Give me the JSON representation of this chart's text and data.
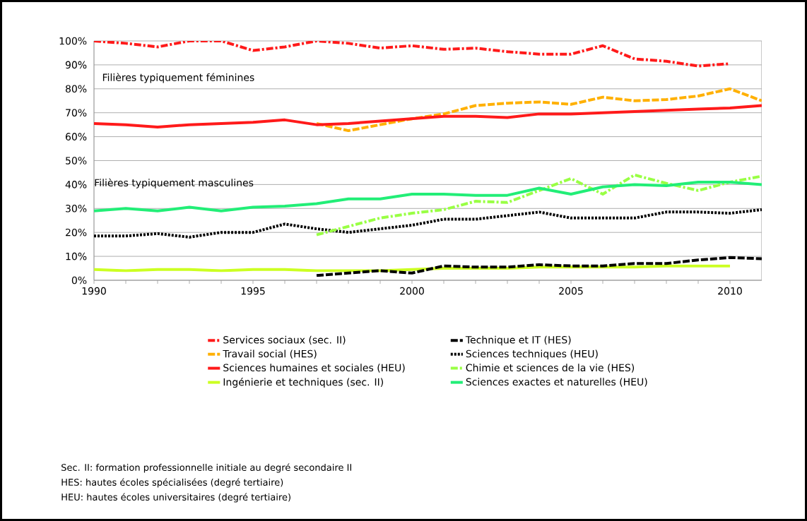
{
  "chart_data": {
    "type": "line",
    "xlim": [
      1990,
      2011
    ],
    "xticks": [
      1990,
      1995,
      2000,
      2005,
      2010
    ],
    "ylim": [
      0,
      100
    ],
    "yticks": [
      {
        "value": 0,
        "label": "0%"
      },
      {
        "value": 10,
        "label": "10%"
      },
      {
        "value": 20,
        "label": "20%"
      },
      {
        "value": 30,
        "label": "30%"
      },
      {
        "value": 40,
        "label": "40%"
      },
      {
        "value": 50,
        "label": "50%"
      },
      {
        "value": 60,
        "label": "60%"
      },
      {
        "value": 70,
        "label": "70%"
      },
      {
        "value": 80,
        "label": "80%"
      },
      {
        "value": 90,
        "label": "90%"
      },
      {
        "value": 100,
        "label": "100%"
      }
    ],
    "grid": "y",
    "legend": "bottom",
    "series": [
      {
        "name": "Services sociaux (sec. II)",
        "color": "#ff1a1a",
        "line_style": "dashdot",
        "x": [
          1990,
          1991,
          1992,
          1993,
          1994,
          1995,
          1996,
          1997,
          1998,
          1999,
          2000,
          2001,
          2002,
          2003,
          2004,
          2005,
          2006,
          2007,
          2008,
          2009,
          2010
        ],
        "values": [
          100,
          99,
          97.5,
          100,
          100,
          96,
          97.5,
          100,
          99,
          97,
          98,
          96.5,
          97,
          95.5,
          94.5,
          94.5,
          98,
          92.5,
          91.5,
          89.5,
          90.5
        ]
      },
      {
        "name": "Travail social (HES)",
        "color": "#ffb000",
        "line_style": "dashed",
        "x": [
          1997,
          1998,
          1999,
          2000,
          2001,
          2002,
          2003,
          2004,
          2005,
          2006,
          2007,
          2008,
          2009,
          2010,
          2011
        ],
        "values": [
          65.5,
          62.5,
          65,
          67.5,
          69.5,
          73,
          74,
          74.5,
          73.5,
          76.5,
          75,
          75.5,
          77,
          80,
          75
        ]
      },
      {
        "name": "Sciences humaines et sociales (HEU)",
        "color": "#ff1a1a",
        "line_style": "solid",
        "x": [
          1990,
          1991,
          1992,
          1993,
          1994,
          1995,
          1996,
          1997,
          1998,
          1999,
          2000,
          2001,
          2002,
          2003,
          2004,
          2005,
          2006,
          2007,
          2008,
          2009,
          2010,
          2011
        ],
        "values": [
          65.5,
          65,
          64,
          65,
          65.5,
          66,
          67,
          65,
          65.5,
          66.5,
          67.5,
          68.5,
          68.5,
          68,
          69.5,
          69.5,
          70,
          70.5,
          71,
          71.5,
          72,
          73
        ]
      },
      {
        "name": "Ingénierie et techniques (sec. II)",
        "color": "#ccff22",
        "line_style": "solid",
        "x": [
          1990,
          1991,
          1992,
          1993,
          1994,
          1995,
          1996,
          1997,
          1998,
          1999,
          2000,
          2001,
          2002,
          2003,
          2004,
          2005,
          2006,
          2007,
          2008,
          2009,
          2010
        ],
        "values": [
          4.5,
          4,
          4.5,
          4.5,
          4,
          4.5,
          4.5,
          4,
          4,
          4,
          4.5,
          5,
          5,
          5,
          5.5,
          5.5,
          5.5,
          5.5,
          6,
          6,
          6
        ]
      },
      {
        "name": "Technique et IT (HES)",
        "color": "#000000",
        "line_style": "dashed",
        "x": [
          1997,
          1998,
          1999,
          2000,
          2001,
          2002,
          2003,
          2004,
          2005,
          2006,
          2007,
          2008,
          2009,
          2010,
          2011
        ],
        "values": [
          2,
          3,
          4,
          3,
          6,
          5.5,
          5.5,
          6.5,
          6,
          6,
          7,
          7,
          8.5,
          9.5,
          9
        ]
      },
      {
        "name": "Sciences techniques (HEU)",
        "color": "#000000",
        "line_style": "dotted",
        "x": [
          1990,
          1991,
          1992,
          1993,
          1994,
          1995,
          1996,
          1997,
          1998,
          1999,
          2000,
          2001,
          2002,
          2003,
          2004,
          2005,
          2006,
          2007,
          2008,
          2009,
          2010,
          2011
        ],
        "values": [
          18.5,
          18.5,
          19.5,
          18,
          20,
          20,
          23.5,
          21.5,
          20,
          21.5,
          23,
          25.5,
          25.5,
          27,
          28.5,
          26,
          26,
          26,
          28.5,
          28.5,
          28,
          29.5
        ]
      },
      {
        "name": "Chimie et sciences de la vie (HES)",
        "color": "#99ff44",
        "line_style": "dashdot",
        "x": [
          1997,
          1998,
          1999,
          2000,
          2001,
          2002,
          2003,
          2004,
          2005,
          2006,
          2007,
          2008,
          2009,
          2010,
          2011
        ],
        "values": [
          19,
          22.5,
          26,
          28,
          29.5,
          33,
          32.5,
          37.5,
          42.5,
          36,
          44,
          40.5,
          37.5,
          41,
          43.5
        ]
      },
      {
        "name": "Sciences exactes et naturelles (HEU)",
        "color": "#22ee77",
        "line_style": "solid",
        "x": [
          1990,
          1991,
          1992,
          1993,
          1994,
          1995,
          1996,
          1997,
          1998,
          1999,
          2000,
          2001,
          2002,
          2003,
          2004,
          2005,
          2006,
          2007,
          2008,
          2009,
          2010,
          2011
        ],
        "values": [
          29,
          30,
          29,
          30.5,
          29,
          30.5,
          31,
          32,
          34,
          34,
          36,
          36,
          35.5,
          35.5,
          38.5,
          36,
          39,
          40,
          39.5,
          41,
          41,
          40
        ]
      }
    ],
    "annotations": [
      "Filières typiquement féminines",
      "Filières typiquement masculines",
      "Sec. II: formation professionnelle initiale au degré secondaire II",
      "HES: hautes écoles spécialisées (degré tertiaire)",
      "HEU: hautes écoles universitaires (degré tertiaire)"
    ]
  }
}
